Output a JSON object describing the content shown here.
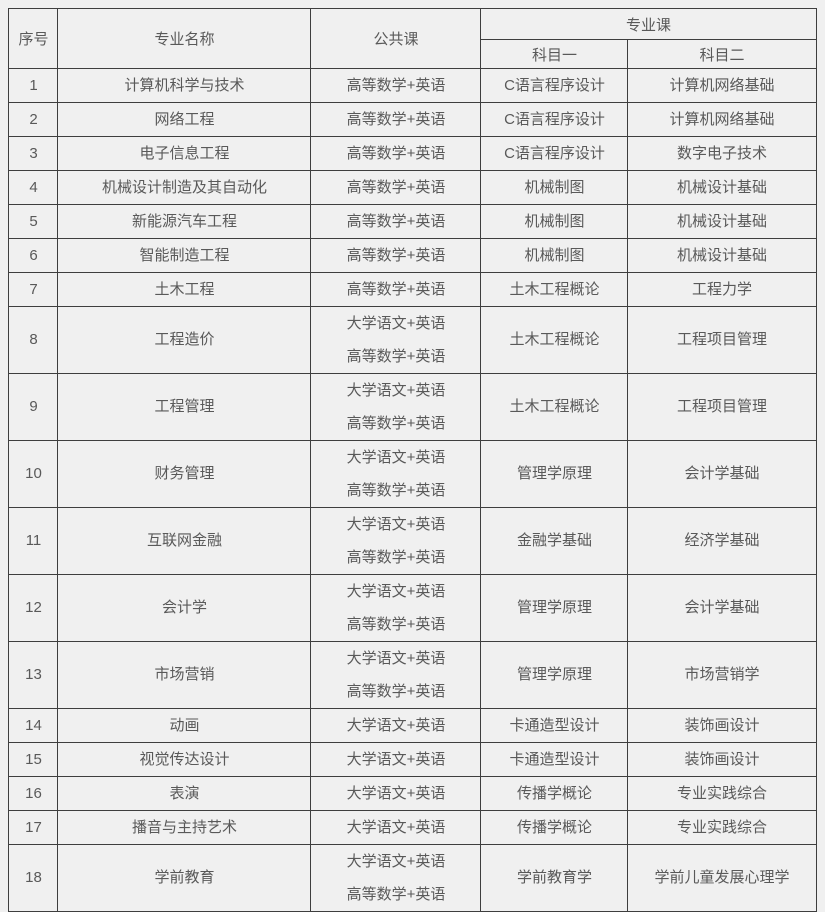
{
  "colors": {
    "page_bg": "#f0f0f0",
    "cell_bg": "#f0f0f0",
    "border": "#3e3e3e",
    "text": "#595959"
  },
  "table": {
    "headers": {
      "col_no": "序号",
      "col_major": "专业名称",
      "col_public": "公共课",
      "col_professional": "专业课",
      "col_subject1": "科目一",
      "col_subject2": "科目二"
    },
    "rows": [
      {
        "no": "1",
        "major": "计算机科学与技术",
        "public_courses": [
          "高等数学+英语"
        ],
        "subject1": "C语言程序设计",
        "subject2": "计算机网络基础"
      },
      {
        "no": "2",
        "major": "网络工程",
        "public_courses": [
          "高等数学+英语"
        ],
        "subject1": "C语言程序设计",
        "subject2": "计算机网络基础"
      },
      {
        "no": "3",
        "major": "电子信息工程",
        "public_courses": [
          "高等数学+英语"
        ],
        "subject1": "C语言程序设计",
        "subject2": "数字电子技术"
      },
      {
        "no": "4",
        "major": "机械设计制造及其自动化",
        "public_courses": [
          "高等数学+英语"
        ],
        "subject1": "机械制图",
        "subject2": "机械设计基础"
      },
      {
        "no": "5",
        "major": "新能源汽车工程",
        "public_courses": [
          "高等数学+英语"
        ],
        "subject1": "机械制图",
        "subject2": "机械设计基础"
      },
      {
        "no": "6",
        "major": "智能制造工程",
        "public_courses": [
          "高等数学+英语"
        ],
        "subject1": "机械制图",
        "subject2": "机械设计基础"
      },
      {
        "no": "7",
        "major": "土木工程",
        "public_courses": [
          "高等数学+英语"
        ],
        "subject1": "土木工程概论",
        "subject2": "工程力学"
      },
      {
        "no": "8",
        "major": "工程造价",
        "public_courses": [
          "大学语文+英语",
          "高等数学+英语"
        ],
        "subject1": "土木工程概论",
        "subject2": "工程项目管理"
      },
      {
        "no": "9",
        "major": "工程管理",
        "public_courses": [
          "大学语文+英语",
          "高等数学+英语"
        ],
        "subject1": "土木工程概论",
        "subject2": "工程项目管理"
      },
      {
        "no": "10",
        "major": "财务管理",
        "public_courses": [
          "大学语文+英语",
          "高等数学+英语"
        ],
        "subject1": "管理学原理",
        "subject2": "会计学基础"
      },
      {
        "no": "11",
        "major": "互联网金融",
        "public_courses": [
          "大学语文+英语",
          "高等数学+英语"
        ],
        "subject1": "金融学基础",
        "subject2": "经济学基础"
      },
      {
        "no": "12",
        "major": "会计学",
        "public_courses": [
          "大学语文+英语",
          "高等数学+英语"
        ],
        "subject1": "管理学原理",
        "subject2": "会计学基础"
      },
      {
        "no": "13",
        "major": "市场营销",
        "public_courses": [
          "大学语文+英语",
          "高等数学+英语"
        ],
        "subject1": "管理学原理",
        "subject2": "市场营销学"
      },
      {
        "no": "14",
        "major": "动画",
        "public_courses": [
          "大学语文+英语"
        ],
        "subject1": "卡通造型设计",
        "subject2": "装饰画设计"
      },
      {
        "no": "15",
        "major": "视觉传达设计",
        "public_courses": [
          "大学语文+英语"
        ],
        "subject1": "卡通造型设计",
        "subject2": "装饰画设计"
      },
      {
        "no": "16",
        "major": "表演",
        "public_courses": [
          "大学语文+英语"
        ],
        "subject1": "传播学概论",
        "subject2": "专业实践综合"
      },
      {
        "no": "17",
        "major": "播音与主持艺术",
        "public_courses": [
          "大学语文+英语"
        ],
        "subject1": "传播学概论",
        "subject2": "专业实践综合"
      },
      {
        "no": "18",
        "major": "学前教育",
        "public_courses": [
          "大学语文+英语",
          "高等数学+英语"
        ],
        "subject1": "学前教育学",
        "subject2": "学前儿童发展心理学"
      }
    ]
  }
}
